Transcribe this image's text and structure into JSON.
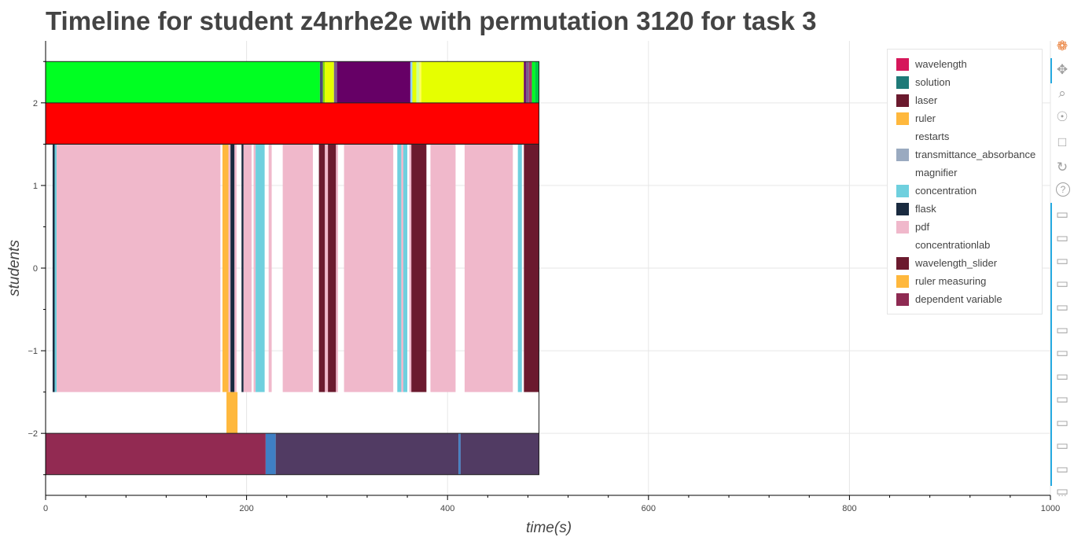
{
  "title": "Timeline for student z4nrhe2e with permutation 3120 for task 3",
  "chart_data": {
    "type": "bar",
    "orientation": "horizontal-timeline",
    "title": "Timeline for student z4nrhe2e with permutation 3120 for task 3",
    "xlabel": "time(s)",
    "ylabel": "students",
    "xlim": [
      0,
      1000
    ],
    "ylim": [
      -2.75,
      2.75
    ],
    "x_ticks": [
      0,
      200,
      400,
      600,
      800,
      1000
    ],
    "y_ticks": [
      -2,
      -1,
      0,
      1,
      2
    ],
    "grid": true,
    "legend_position": "top-right",
    "legend": [
      {
        "label": "wavelength",
        "color": "#d6175a"
      },
      {
        "label": "solution",
        "color": "#1f7a78"
      },
      {
        "label": "laser",
        "color": "#6b1a2e"
      },
      {
        "label": "ruler",
        "color": "#ffb83d"
      },
      {
        "label": "restarts",
        "color": ""
      },
      {
        "label": "transmittance_absorbance",
        "color": "#9aaac0"
      },
      {
        "label": "magnifier",
        "color": ""
      },
      {
        "label": "concentration",
        "color": "#6fd0de"
      },
      {
        "label": "flask",
        "color": "#1a2b40"
      },
      {
        "label": "pdf",
        "color": "#f0b8cb"
      },
      {
        "label": "concentrationlab",
        "color": ""
      },
      {
        "label": "wavelength_slider",
        "color": "#6b1a2e"
      },
      {
        "label": "ruler measuring",
        "color": "#ffb83d"
      },
      {
        "label": "dependent variable",
        "color": "#8e2a52"
      }
    ],
    "rows": [
      {
        "y0": 2.0,
        "y1": 2.5,
        "segments": [
          {
            "start": 0,
            "end": 273,
            "color": "#00ff22"
          },
          {
            "start": 273,
            "end": 276,
            "color": "#4a4a7a"
          },
          {
            "start": 276,
            "end": 278,
            "color": "#88e000"
          },
          {
            "start": 278,
            "end": 287,
            "color": "#e6ff00"
          },
          {
            "start": 287,
            "end": 290,
            "color": "#7a5c8a"
          },
          {
            "start": 290,
            "end": 363,
            "color": "#660066"
          },
          {
            "start": 363,
            "end": 365,
            "color": "#8fd0ff"
          },
          {
            "start": 365,
            "end": 369,
            "color": "#e6ff00"
          },
          {
            "start": 369,
            "end": 372,
            "color": "#ccff99"
          },
          {
            "start": 372,
            "end": 374,
            "color": "#ffff55"
          },
          {
            "start": 374,
            "end": 476,
            "color": "#e6ff00"
          },
          {
            "start": 476,
            "end": 478,
            "color": "#660066"
          },
          {
            "start": 478,
            "end": 481,
            "color": "#7a5c8a"
          },
          {
            "start": 481,
            "end": 484,
            "color": "#a23a6a"
          },
          {
            "start": 484,
            "end": 487,
            "color": "#00ff22"
          },
          {
            "start": 487,
            "end": 491,
            "color": "#00cc44"
          }
        ]
      },
      {
        "y0": 1.5,
        "y1": 2.0,
        "segments": [
          {
            "start": 0,
            "end": 491,
            "color": "#ff0000"
          }
        ]
      },
      {
        "y0": -1.5,
        "y1": 1.5,
        "segments": [
          {
            "start": 7,
            "end": 9,
            "color": "#1a2b40"
          },
          {
            "start": 9,
            "end": 11,
            "color": "#6fd0de"
          },
          {
            "start": 11,
            "end": 174,
            "color": "#f0b8cb"
          },
          {
            "start": 176,
            "end": 182,
            "color": "#ffb83d"
          },
          {
            "start": 182,
            "end": 184,
            "color": "#f0b8cb"
          },
          {
            "start": 184,
            "end": 188,
            "color": "#1a2b40"
          },
          {
            "start": 188,
            "end": 190,
            "color": "#f0b8cb"
          },
          {
            "start": 195,
            "end": 197,
            "color": "#1a2b40"
          },
          {
            "start": 197,
            "end": 205,
            "color": "#f0b8cb"
          },
          {
            "start": 207,
            "end": 209,
            "color": "#f0b8cb"
          },
          {
            "start": 209,
            "end": 218,
            "color": "#6fd0de"
          },
          {
            "start": 222,
            "end": 225,
            "color": "#f0b8cb"
          },
          {
            "start": 236,
            "end": 266,
            "color": "#f0b8cb"
          },
          {
            "start": 272,
            "end": 278,
            "color": "#6b1a2e"
          },
          {
            "start": 278,
            "end": 281,
            "color": "#f0b8cb"
          },
          {
            "start": 281,
            "end": 289,
            "color": "#6b1a2e"
          },
          {
            "start": 289,
            "end": 291,
            "color": "#f0b8cb"
          },
          {
            "start": 297,
            "end": 346,
            "color": "#f0b8cb"
          },
          {
            "start": 350,
            "end": 354,
            "color": "#6fd0de"
          },
          {
            "start": 354,
            "end": 356,
            "color": "#f0b8cb"
          },
          {
            "start": 356,
            "end": 360,
            "color": "#6fd0de"
          },
          {
            "start": 362,
            "end": 364,
            "color": "#f0b8cb"
          },
          {
            "start": 364,
            "end": 379,
            "color": "#6b1a2e"
          },
          {
            "start": 383,
            "end": 408,
            "color": "#f0b8cb"
          },
          {
            "start": 417,
            "end": 465,
            "color": "#f0b8cb"
          },
          {
            "start": 470,
            "end": 474,
            "color": "#6fd0de"
          },
          {
            "start": 476,
            "end": 491,
            "color": "#6b1a2e"
          }
        ]
      },
      {
        "y0": -2.0,
        "y1": -1.5,
        "segments": [
          {
            "start": 180,
            "end": 191,
            "color": "#ffb83d"
          }
        ]
      },
      {
        "y0": -2.5,
        "y1": -2.0,
        "segments": [
          {
            "start": 0,
            "end": 219,
            "color": "#922a52"
          },
          {
            "start": 219,
            "end": 229,
            "color": "#3f7fc4"
          },
          {
            "start": 229,
            "end": 411,
            "color": "#513b63"
          },
          {
            "start": 411,
            "end": 413,
            "color": "#3f7fc4"
          },
          {
            "start": 413,
            "end": 491,
            "color": "#513b63"
          }
        ]
      }
    ],
    "frame_boxes": [
      {
        "y0": 1.5,
        "y1": 2.5,
        "start": 0,
        "end": 491
      },
      {
        "y0": -2.5,
        "y1": 1.5,
        "start": 0,
        "end": 491
      }
    ]
  },
  "toolbar": {
    "tools": [
      "bokeh-logo-icon",
      "pan-icon",
      "box-zoom-icon",
      "wheel-zoom-icon",
      "save-icon",
      "reset-icon",
      "help-icon",
      "hover-icon",
      "hover-icon",
      "hover-icon",
      "hover-icon",
      "hover-icon",
      "hover-icon",
      "hover-icon",
      "hover-icon",
      "hover-icon",
      "hover-icon",
      "hover-icon",
      "hover-icon",
      "hover-icon",
      "more-icon"
    ]
  }
}
